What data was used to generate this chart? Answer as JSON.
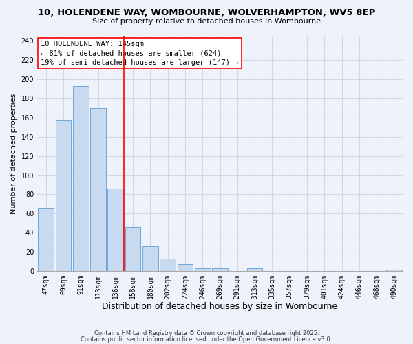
{
  "title": "10, HOLENDENE WAY, WOMBOURNE, WOLVERHAMPTON, WV5 8EP",
  "subtitle": "Size of property relative to detached houses in Wombourne",
  "xlabel": "Distribution of detached houses by size in Wombourne",
  "ylabel": "Number of detached properties",
  "bar_labels": [
    "47sqm",
    "69sqm",
    "91sqm",
    "113sqm",
    "136sqm",
    "158sqm",
    "180sqm",
    "202sqm",
    "224sqm",
    "246sqm",
    "269sqm",
    "291sqm",
    "313sqm",
    "335sqm",
    "357sqm",
    "379sqm",
    "401sqm",
    "424sqm",
    "446sqm",
    "468sqm",
    "490sqm"
  ],
  "bar_values": [
    65,
    157,
    193,
    170,
    86,
    46,
    26,
    13,
    7,
    3,
    3,
    0,
    3,
    0,
    0,
    0,
    0,
    0,
    0,
    0,
    1
  ],
  "bar_color": "#c8daf0",
  "bar_edge_color": "#6fa8d8",
  "redline_x": 4.5,
  "annotation_title": "10 HOLENDENE WAY: 145sqm",
  "annotation_line1": "← 81% of detached houses are smaller (624)",
  "annotation_line2": "19% of semi-detached houses are larger (147) →",
  "ylim": [
    0,
    245
  ],
  "yticks": [
    0,
    20,
    40,
    60,
    80,
    100,
    120,
    140,
    160,
    180,
    200,
    220,
    240
  ],
  "footnote1": "Contains HM Land Registry data © Crown copyright and database right 2025.",
  "footnote2": "Contains public sector information licensed under the Open Government Licence v3.0.",
  "background_color": "#eef2fa",
  "grid_color": "#d0d8e8",
  "title_fontsize": 9.5,
  "subtitle_fontsize": 8,
  "ylabel_fontsize": 8,
  "xlabel_fontsize": 9,
  "tick_fontsize": 7,
  "footnote_fontsize": 6,
  "annotation_fontsize": 7.5
}
